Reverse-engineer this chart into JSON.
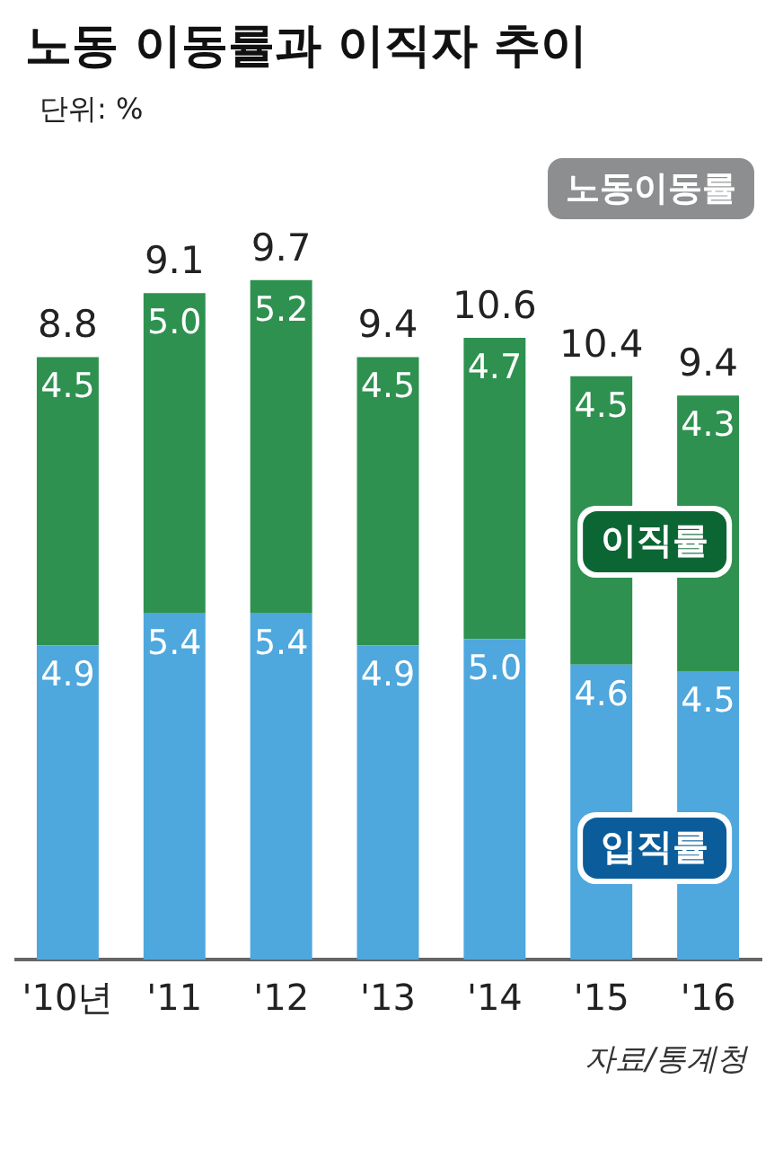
{
  "chart_data": {
    "type": "bar",
    "title": "노동 이동률과 이직자 추이",
    "subtitle": "단위: %",
    "stacked": true,
    "categories": [
      "'10년",
      "'11",
      "'12",
      "'13",
      "'14",
      "'15",
      "'16"
    ],
    "series": [
      {
        "name": "입직률",
        "color": "#4ea7dd",
        "values": [
          4.9,
          5.4,
          5.4,
          4.9,
          5.0,
          4.6,
          4.5
        ],
        "value_labels": [
          "4.9",
          "5.4",
          "5.4",
          "4.9",
          "5.0",
          "4.6",
          "4.5"
        ]
      },
      {
        "name": "이직률",
        "color": "#2e9150",
        "values": [
          4.5,
          5.0,
          5.2,
          4.5,
          4.7,
          4.5,
          4.3
        ],
        "value_labels": [
          "4.5",
          "5.0",
          "5.2",
          "4.5",
          "4.7",
          "4.5",
          "4.3"
        ]
      }
    ],
    "legend_title": "노동이동률",
    "annotations": [
      "8.8",
      "9.1",
      "9.7",
      "9.4",
      "10.6",
      "10.4",
      "9.4",
      "자료/통계청"
    ]
  }
}
